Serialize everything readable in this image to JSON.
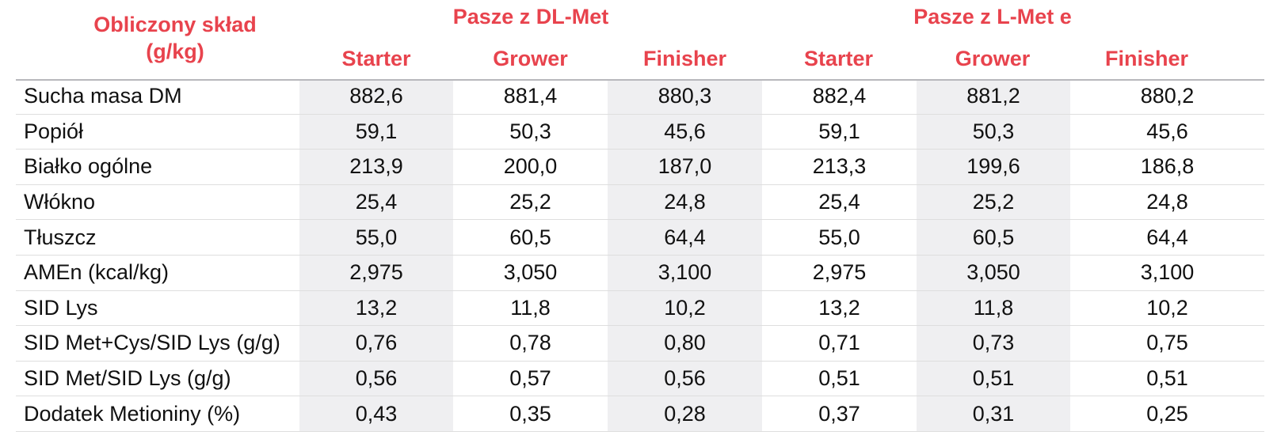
{
  "corner_header": [
    "Obliczony skład",
    "(g/kg)"
  ],
  "groups": [
    "Pasze z DL-Met",
    "Pasze z L-Met e"
  ],
  "phases": [
    "Starter",
    "Grower",
    "Finisher",
    "Starter",
    "Grower",
    "Finisher"
  ],
  "rows": [
    {
      "label": "Sucha masa DM",
      "values": [
        "882,6",
        "881,4",
        "880,3",
        "882,4",
        "881,2",
        "880,2"
      ]
    },
    {
      "label": "Popiół",
      "values": [
        "59,1",
        "50,3",
        "45,6",
        "59,1",
        "50,3",
        "45,6"
      ]
    },
    {
      "label": "Białko ogólne",
      "values": [
        "213,9",
        "200,0",
        "187,0",
        "213,3",
        "199,6",
        "186,8"
      ]
    },
    {
      "label": "Włókno",
      "values": [
        "25,4",
        "25,2",
        "24,8",
        "25,4",
        "25,2",
        "24,8"
      ]
    },
    {
      "label": "Tłuszcz",
      "values": [
        "55,0",
        "60,5",
        "64,4",
        "55,0",
        "60,5",
        "64,4"
      ]
    },
    {
      "label": "AMEn (kcal/kg)",
      "values": [
        "2,975",
        "3,050",
        "3,100",
        "2,975",
        "3,050",
        "3,100"
      ]
    },
    {
      "label": "SID Lys",
      "values": [
        "13,2",
        "11,8",
        "10,2",
        "13,2",
        "11,8",
        "10,2"
      ]
    },
    {
      "label": "SID Met+Cys/SID Lys (g/g)",
      "values": [
        "0,76",
        "0,78",
        "0,80",
        "0,71",
        "0,73",
        "0,75"
      ]
    },
    {
      "label": "SID Met/SID Lys (g/g)",
      "values": [
        "0,56",
        "0,57",
        "0,56",
        "0,51",
        "0,51",
        "0,51"
      ]
    },
    {
      "label": "Dodatek Metioniny (%)",
      "values": [
        "0,43",
        "0,35",
        "0,28",
        "0,37",
        "0,31",
        "0,25"
      ]
    }
  ],
  "colors": {
    "header": "#e8434d",
    "shade": "#efeff1",
    "rule": "#b8b8bc"
  }
}
